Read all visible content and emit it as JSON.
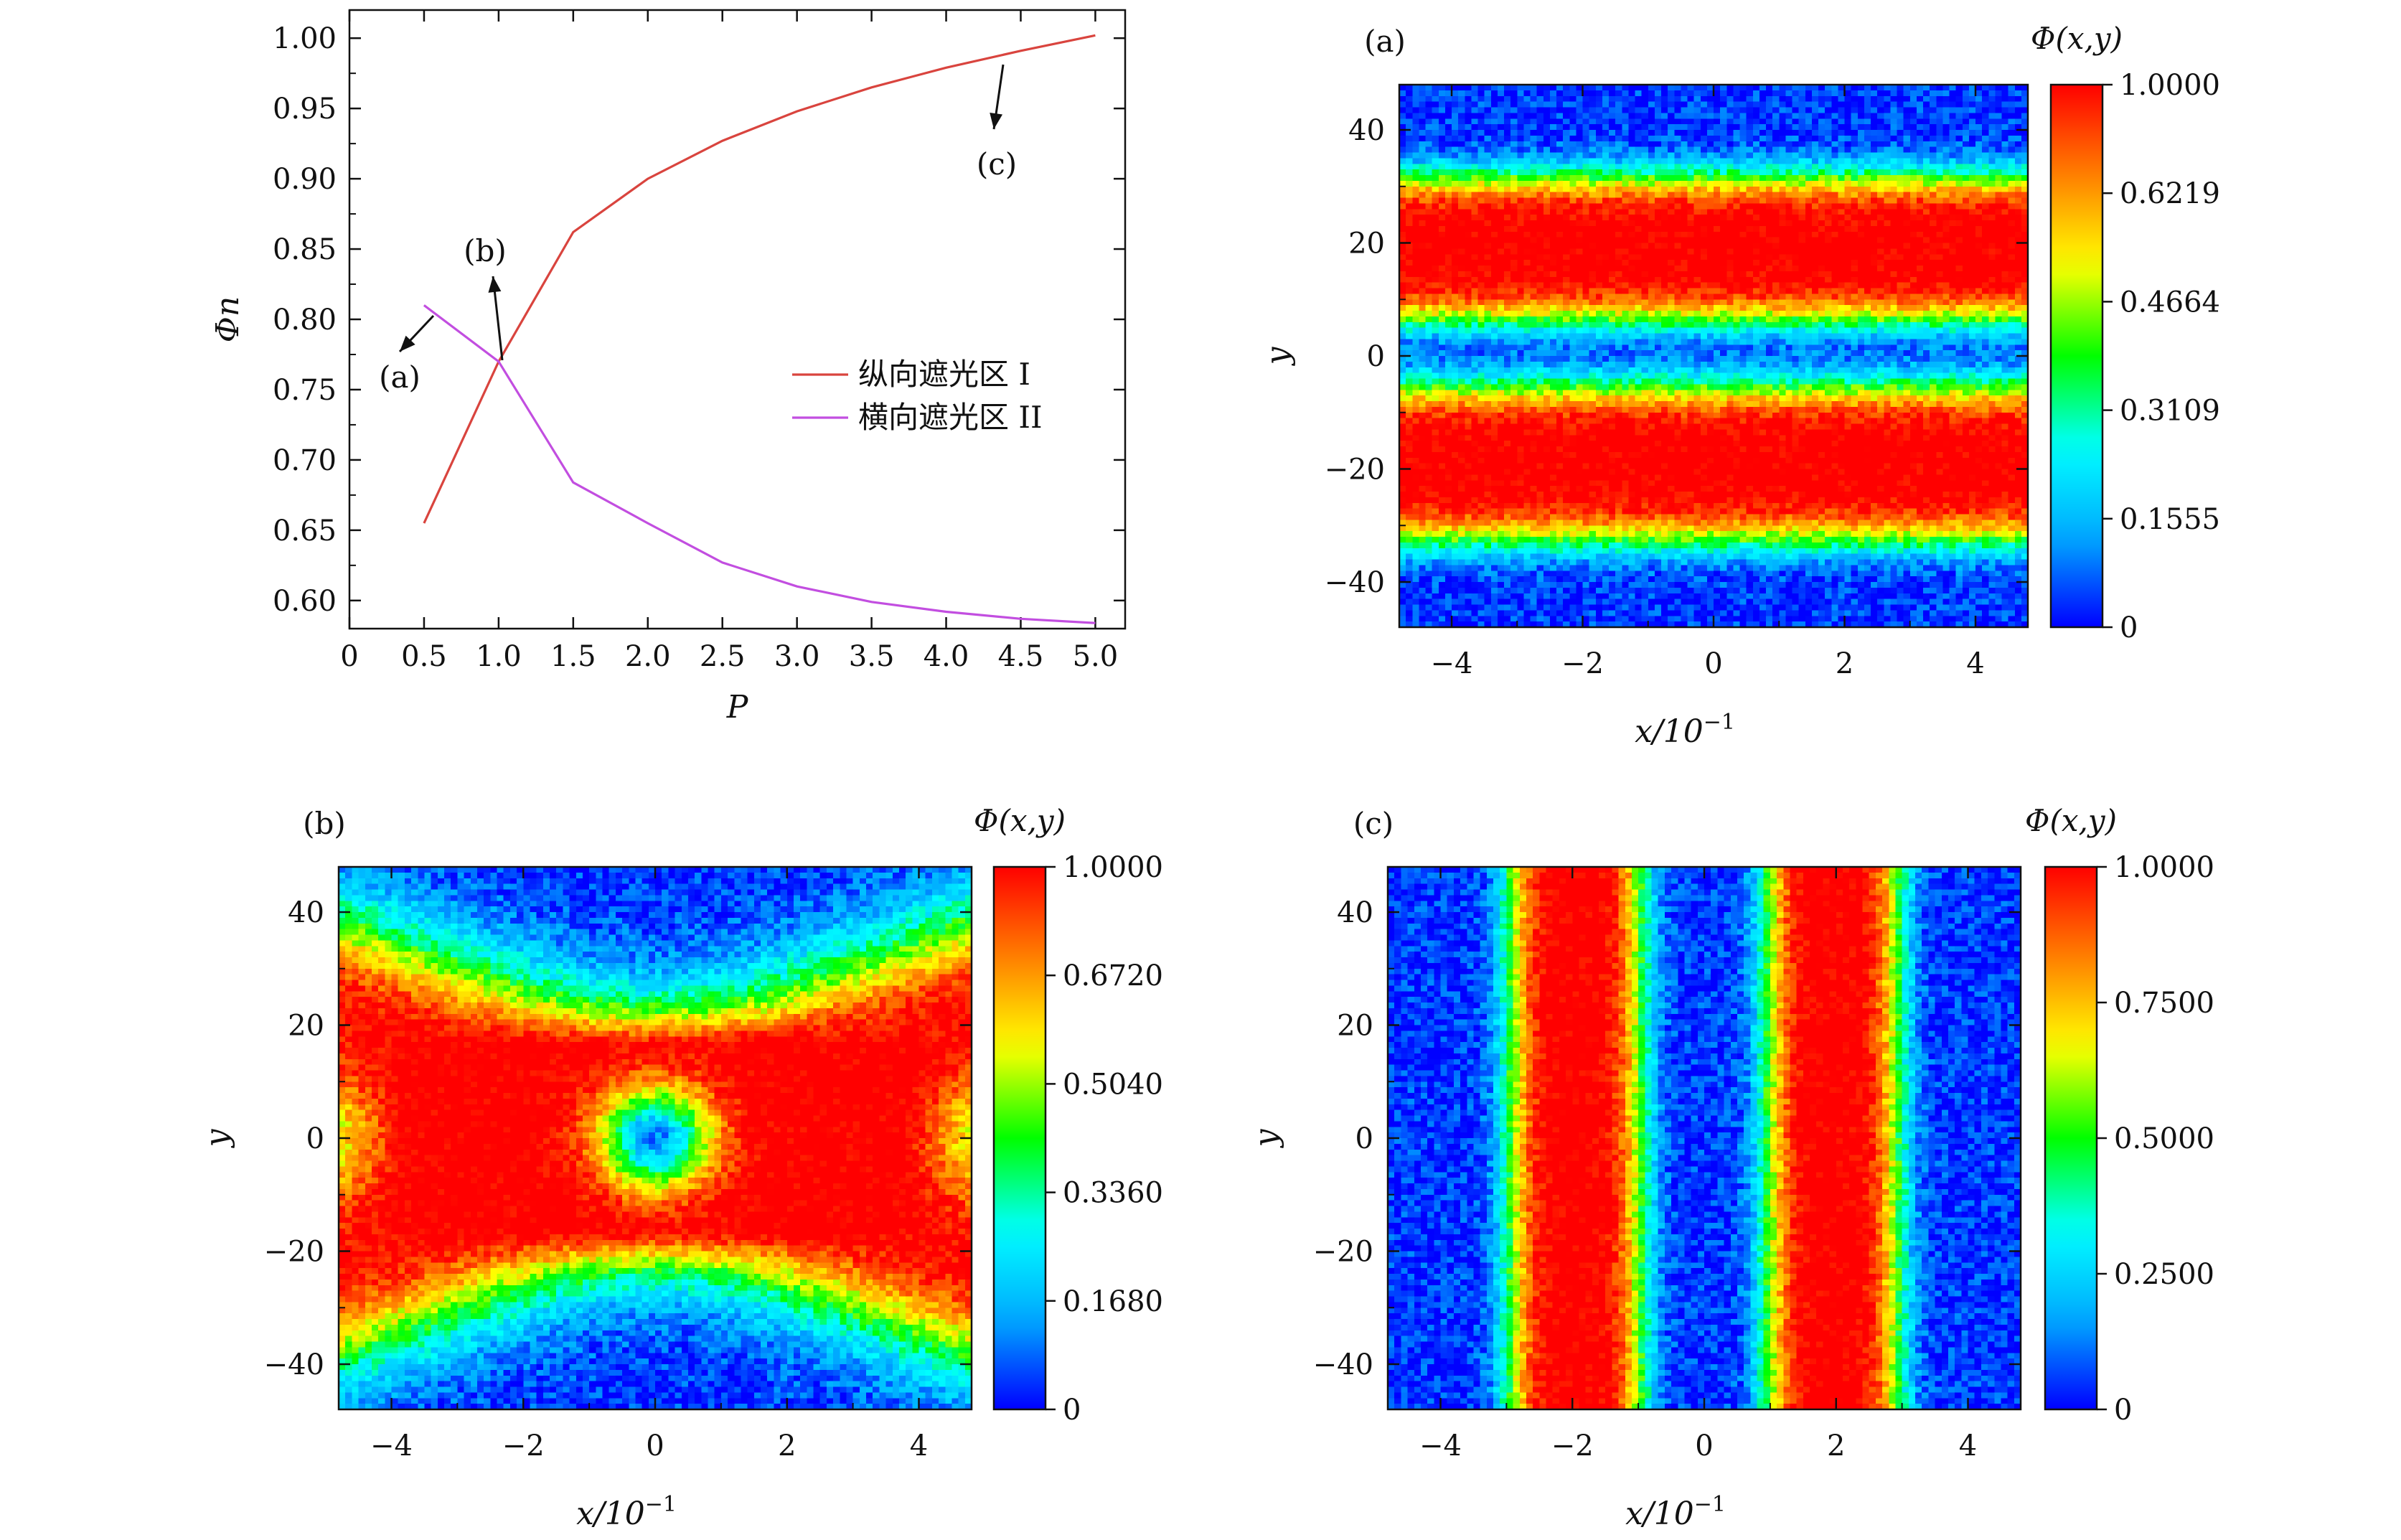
{
  "figure": {
    "colormap": [
      "#0000ff",
      "#00aaff",
      "#00ffff",
      "#00ff00",
      "#ffff00",
      "#ff8000",
      "#ff0000"
    ],
    "line_chart": {
      "type": "line",
      "xlabel": "P",
      "ylabel": "Φn",
      "xlim": [
        0,
        5.2
      ],
      "ylim": [
        0.58,
        1.02
      ],
      "xticks": [
        "0",
        "0.5",
        "1.0",
        "1.5",
        "2.0",
        "2.5",
        "3.0",
        "3.5",
        "4.0",
        "4.5",
        "5.0"
      ],
      "yticks": [
        "0.60",
        "0.65",
        "0.70",
        "0.75",
        "0.80",
        "0.85",
        "0.90",
        "0.95",
        "1.00"
      ],
      "legend_position": "right-middle",
      "annotations": [
        {
          "text": "(a)",
          "at": [
            0.5,
            0.81
          ]
        },
        {
          "text": "(b)",
          "at": [
            1.0,
            0.77
          ]
        },
        {
          "text": "(c)",
          "at": [
            4.3,
            0.99
          ]
        }
      ],
      "series": [
        {
          "name": "纵向遮光区 I",
          "color": "#d9443e",
          "x": [
            0.5,
            1.0,
            1.5,
            2.0,
            2.5,
            3.0,
            3.5,
            4.0,
            4.5,
            5.0
          ],
          "y": [
            0.655,
            0.77,
            0.862,
            0.9,
            0.927,
            0.948,
            0.965,
            0.979,
            0.991,
            1.002
          ]
        },
        {
          "name": "横向遮光区 II",
          "color": "#c24ee0",
          "x": [
            0.5,
            1.0,
            1.5,
            2.0,
            2.5,
            3.0,
            3.5,
            4.0,
            4.5,
            5.0
          ],
          "y": [
            0.81,
            0.77,
            0.684,
            0.655,
            0.627,
            0.61,
            0.599,
            0.592,
            0.587,
            0.584
          ]
        }
      ]
    },
    "heatmaps": [
      {
        "panel_label": "(a)",
        "type": "heatmap",
        "pattern": "horizontal-bands",
        "xlabel": "x/10",
        "xlabel_exp": "−1",
        "ylabel": "y",
        "xlim": [
          -4.8,
          4.8
        ],
        "ylim": [
          -48,
          48
        ],
        "xticks": [
          "−4",
          "−2",
          "0",
          "2",
          "4"
        ],
        "yticks": [
          "−40",
          "−20",
          "0",
          "20",
          "40"
        ],
        "colorbar_title": "Φ(x,y)",
        "colorbar_range": [
          0,
          1.0
        ],
        "colorbar_ticks": [
          "1.0000",
          "0.6219",
          "0.4664",
          "0.3109",
          "0.1555",
          "0"
        ]
      },
      {
        "panel_label": "(b)",
        "type": "heatmap",
        "pattern": "cross",
        "xlabel": "x/10",
        "xlabel_exp": "−1",
        "ylabel": "y",
        "xlim": [
          -4.8,
          4.8
        ],
        "ylim": [
          -48,
          48
        ],
        "xticks": [
          "−4",
          "−2",
          "0",
          "2",
          "4"
        ],
        "yticks": [
          "−40",
          "−20",
          "0",
          "20",
          "40"
        ],
        "colorbar_title": "Φ(x,y)",
        "colorbar_range": [
          0,
          1.0
        ],
        "colorbar_ticks": [
          "1.0000",
          "0.6720",
          "0.5040",
          "0.3360",
          "0.1680",
          "0"
        ]
      },
      {
        "panel_label": "(c)",
        "type": "heatmap",
        "pattern": "vertical-bands",
        "xlabel": "x/10",
        "xlabel_exp": "−1",
        "ylabel": "y",
        "xlim": [
          -4.8,
          4.8
        ],
        "ylim": [
          -48,
          48
        ],
        "xticks": [
          "−4",
          "−2",
          "0",
          "2",
          "4"
        ],
        "yticks": [
          "−40",
          "−20",
          "0",
          "20",
          "40"
        ],
        "colorbar_title": "Φ(x,y)",
        "colorbar_range": [
          0,
          1.0
        ],
        "colorbar_ticks": [
          "1.0000",
          "0.7500",
          "0.5000",
          "0.2500",
          "0"
        ]
      }
    ]
  }
}
